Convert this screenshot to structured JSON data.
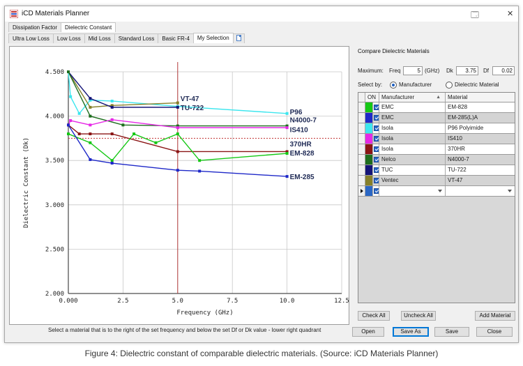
{
  "window": {
    "title": "iCD Materials Planner",
    "minimize_glyph": "🗔",
    "close_glyph": "✕"
  },
  "top_tabs": [
    {
      "label": "Dissipation Factor",
      "active": false
    },
    {
      "label": "Dielectric Constant",
      "active": true
    }
  ],
  "sub_tabs": [
    {
      "label": "Ultra Low Loss"
    },
    {
      "label": "Low Loss"
    },
    {
      "label": "Mid Loss"
    },
    {
      "label": "Standard Loss"
    },
    {
      "label": "Basic FR-4"
    },
    {
      "label": "My Selection",
      "active": true
    }
  ],
  "status_text": "Select a material that is to the right of the set frequency and below the set Df or Dk value - lower right quadrant",
  "compare": {
    "title": "Compare Dielectric Materials",
    "maximum_label": "Maximum:",
    "freq_label": "Freq",
    "freq_value": "5",
    "freq_unit": "(GHz)",
    "dk_label": "Dk",
    "dk_value": "3.75",
    "df_label": "Df",
    "df_value": "0.02",
    "select_by_label": "Select by:",
    "option_manufacturer": "Manufacturer",
    "option_material": "Dielectric Material",
    "columns": {
      "on": "ON",
      "manufacturer": "Manufacturer",
      "material": "Material"
    },
    "rows": [
      {
        "color": "#14c814",
        "manufacturer": "EMC",
        "material": "EM-828"
      },
      {
        "color": "#1e28c8",
        "manufacturer": "EMC",
        "material": "EM-285(L)A"
      },
      {
        "color": "#3ce6ee",
        "manufacturer": "Isola",
        "material": "P96 Polyimide"
      },
      {
        "color": "#e628e6",
        "manufacturer": "Isola",
        "material": "IS410"
      },
      {
        "color": "#8a1414",
        "manufacturer": "Isola",
        "material": "370HR"
      },
      {
        "color": "#1e6e1e",
        "manufacturer": "Nelco",
        "material": "N4000-7"
      },
      {
        "color": "#141478",
        "manufacturer": "TUC",
        "material": "TU-722"
      },
      {
        "color": "#86802a",
        "manufacturer": "Ventec",
        "material": "VT-47"
      }
    ],
    "buttons": {
      "check_all": "Check All",
      "uncheck_all": "Uncheck All",
      "add_material": "Add Material"
    }
  },
  "footer_buttons": {
    "open": "Open",
    "save_as": "Save As",
    "save": "Save",
    "close": "Close"
  },
  "caption": "Figure 4: Dielectric constant of comparable dielectric materials. (Source: iCD Materials Planner)",
  "chart_data": {
    "type": "line",
    "title": "",
    "xlabel": "Frequency (GHz)",
    "ylabel": "Dielectric Constant (Dk)",
    "xlim": [
      0,
      12.5
    ],
    "ylim": [
      2.0,
      4.5
    ],
    "x_ticks": [
      "0.000",
      "2.5",
      "5.0",
      "7.5",
      "10.0",
      "12.5"
    ],
    "y_ticks": [
      "2.000",
      "2.500",
      "3.000",
      "3.500",
      "4.000",
      "4.500"
    ],
    "grid": true,
    "reference_lines": {
      "freq": 5,
      "dk": 3.75
    },
    "series": [
      {
        "name": "P96",
        "color": "#3ce6ee",
        "x": [
          0,
          0.1,
          0.5,
          1,
          2,
          5,
          10
        ],
        "y": [
          4.5,
          4.22,
          4.03,
          4.18,
          4.17,
          4.11,
          4.03
        ]
      },
      {
        "name": "VT-47",
        "color": "#86802a",
        "x": [
          0,
          1,
          2,
          5
        ],
        "y": [
          4.5,
          4.1,
          4.12,
          4.15
        ]
      },
      {
        "name": "TU-722",
        "color": "#141478",
        "x": [
          0,
          1,
          2,
          5
        ],
        "y": [
          4.5,
          4.2,
          4.1,
          4.1
        ]
      },
      {
        "name": "N4000-7",
        "color": "#1e6e1e",
        "x": [
          0,
          1,
          2.5,
          5,
          10
        ],
        "y": [
          4.5,
          4.0,
          3.9,
          3.89,
          3.89
        ]
      },
      {
        "name": "IS410",
        "color": "#e628e6",
        "x": [
          0,
          0.1,
          1,
          2,
          5,
          10
        ],
        "y": [
          3.9,
          3.95,
          3.9,
          3.96,
          3.87,
          3.87
        ]
      },
      {
        "name": "370HR",
        "color": "#8a1414",
        "x": [
          0,
          0.5,
          1,
          2,
          5,
          10
        ],
        "y": [
          3.9,
          3.8,
          3.8,
          3.8,
          3.6,
          3.6
        ]
      },
      {
        "name": "EM-828",
        "color": "#14c814",
        "x": [
          0,
          1,
          2,
          3,
          4,
          5,
          6,
          10
        ],
        "y": [
          3.8,
          3.7,
          3.5,
          3.8,
          3.7,
          3.8,
          3.5,
          3.58
        ]
      },
      {
        "name": "EM-285",
        "color": "#1e28c8",
        "x": [
          0,
          1,
          2,
          5,
          6,
          10
        ],
        "y": [
          3.9,
          3.51,
          3.47,
          3.39,
          3.38,
          3.32
        ]
      }
    ]
  }
}
